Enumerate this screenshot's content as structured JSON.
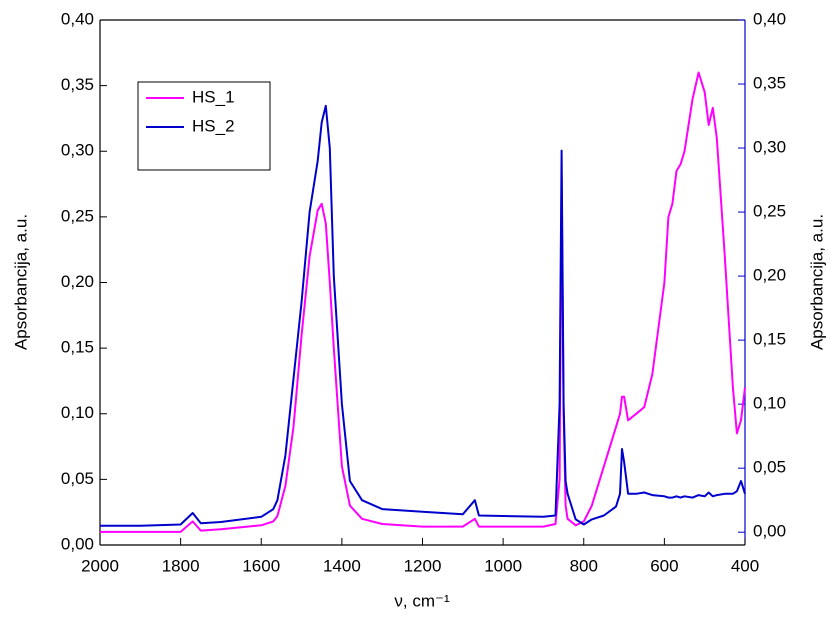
{
  "chart_data": {
    "type": "line",
    "x_label": "ν, cm⁻¹",
    "y_label": "Apsorbancija, a.u.",
    "y2_label": "Apsorbancija, a.u.",
    "xlim": [
      2000,
      400
    ],
    "xticks": [
      2000,
      1800,
      1600,
      1400,
      1200,
      1000,
      800,
      600,
      400
    ],
    "ylim": [
      0,
      0.4
    ],
    "yticks": [
      {
        "value": 0,
        "label": "0,00"
      },
      {
        "value": 0.05,
        "label": "0,05"
      },
      {
        "value": 0.1,
        "label": "0,10"
      },
      {
        "value": 0.15,
        "label": "0,15"
      },
      {
        "value": 0.2,
        "label": "0,20"
      },
      {
        "value": 0.25,
        "label": "0,25"
      },
      {
        "value": 0.3,
        "label": "0,30"
      },
      {
        "value": 0.35,
        "label": "0,35"
      },
      {
        "value": 0.4,
        "label": "0,40"
      }
    ],
    "y2lim": [
      -0.01,
      0.4
    ],
    "y2ticks": [
      {
        "value": 0,
        "label": "0,00"
      },
      {
        "value": 0.05,
        "label": "0,05"
      },
      {
        "value": 0.1,
        "label": "0,10"
      },
      {
        "value": 0.15,
        "label": "0,15"
      },
      {
        "value": 0.2,
        "label": "0,20"
      },
      {
        "value": 0.25,
        "label": "0,25"
      },
      {
        "value": 0.3,
        "label": "0,30"
      },
      {
        "value": 0.35,
        "label": "0,35"
      },
      {
        "value": 0.4,
        "label": "0,40"
      }
    ],
    "y2_color": "#0000cc",
    "legend": "upper left",
    "x": [
      2000,
      1900,
      1800,
      1770,
      1750,
      1700,
      1600,
      1570,
      1560,
      1540,
      1520,
      1500,
      1480,
      1460,
      1450,
      1440,
      1430,
      1420,
      1400,
      1380,
      1350,
      1300,
      1200,
      1100,
      1070,
      1060,
      900,
      870,
      860,
      855,
      850,
      845,
      840,
      820,
      800,
      780,
      750,
      720,
      710,
      705,
      700,
      690,
      670,
      650,
      630,
      600,
      590,
      580,
      570,
      560,
      550,
      530,
      515,
      500,
      490,
      480,
      470,
      450,
      430,
      420,
      410,
      400
    ],
    "series": [
      {
        "name": "HS_1",
        "color": "#ff00ff",
        "axis": "y",
        "values": [
          0.01,
          0.01,
          0.01,
          0.018,
          0.011,
          0.012,
          0.015,
          0.018,
          0.022,
          0.045,
          0.09,
          0.16,
          0.22,
          0.255,
          0.26,
          0.245,
          0.2,
          0.15,
          0.06,
          0.03,
          0.02,
          0.016,
          0.014,
          0.014,
          0.02,
          0.014,
          0.014,
          0.016,
          0.05,
          0.28,
          0.1,
          0.03,
          0.02,
          0.015,
          0.018,
          0.03,
          0.06,
          0.09,
          0.1,
          0.113,
          0.113,
          0.095,
          0.1,
          0.105,
          0.13,
          0.2,
          0.25,
          0.26,
          0.285,
          0.29,
          0.3,
          0.34,
          0.36,
          0.345,
          0.32,
          0.333,
          0.31,
          0.22,
          0.12,
          0.085,
          0.095,
          0.12
        ]
      },
      {
        "name": "HS_2",
        "color": "#0000cc",
        "axis": "y2",
        "values": [
          0.005,
          0.005,
          0.006,
          0.015,
          0.007,
          0.008,
          0.012,
          0.018,
          0.025,
          0.06,
          0.12,
          0.18,
          0.25,
          0.29,
          0.32,
          0.333,
          0.3,
          0.2,
          0.1,
          0.04,
          0.025,
          0.018,
          0.016,
          0.014,
          0.025,
          0.013,
          0.012,
          0.013,
          0.1,
          0.298,
          0.1,
          0.04,
          0.03,
          0.01,
          0.006,
          0.01,
          0.013,
          0.02,
          0.03,
          0.065,
          0.055,
          0.03,
          0.03,
          0.031,
          0.029,
          0.028,
          0.027,
          0.027,
          0.028,
          0.027,
          0.028,
          0.027,
          0.029,
          0.028,
          0.031,
          0.028,
          0.029,
          0.03,
          0.03,
          0.032,
          0.04,
          0.03
        ]
      }
    ]
  }
}
